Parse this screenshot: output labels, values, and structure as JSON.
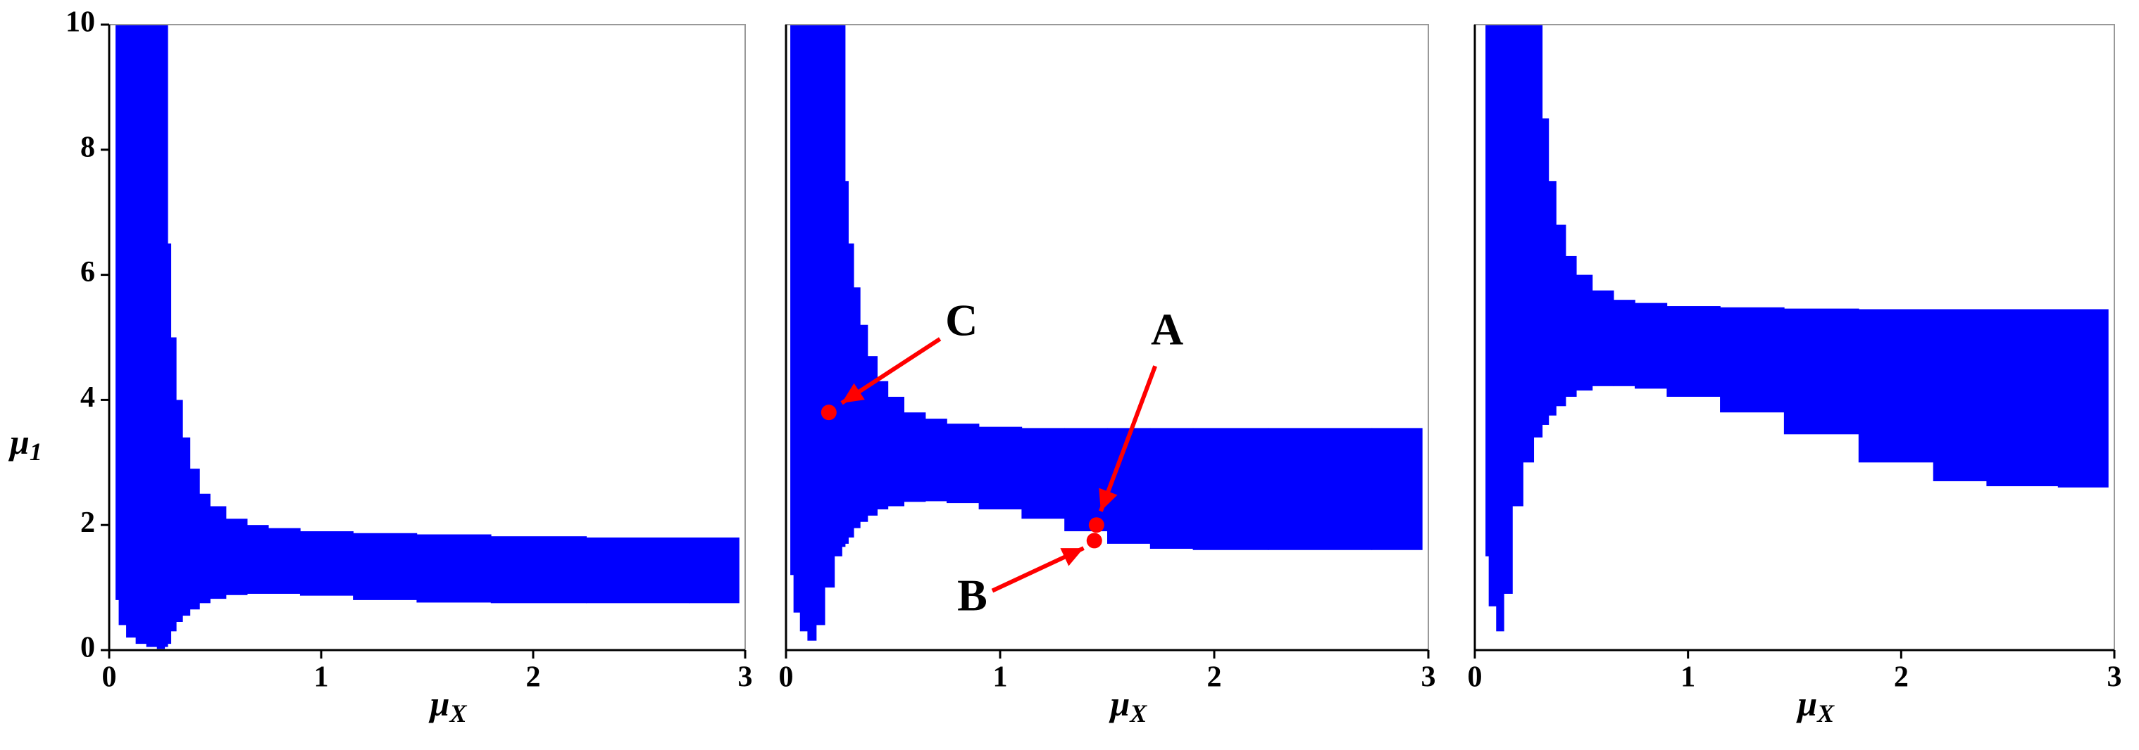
{
  "chart_data": [
    {
      "type": "range",
      "color": "#0000ff",
      "xlim": [
        0,
        3
      ],
      "ylim": [
        0,
        10
      ],
      "xticks": [
        0,
        1,
        2,
        3
      ],
      "yticks": [
        0,
        2,
        4,
        6,
        8,
        10
      ],
      "xlabel": {
        "base": "μ",
        "sub": "X"
      },
      "ylabel": {
        "base": "μ",
        "sub": "1"
      },
      "x": [
        0.03,
        0.06,
        0.1,
        0.15,
        0.2,
        0.25,
        0.27,
        0.28,
        0.3,
        0.33,
        0.36,
        0.4,
        0.45,
        0.5,
        0.6,
        0.7,
        0.8,
        1.0,
        1.3,
        1.6,
        2.0,
        2.5,
        2.97
      ],
      "upper": [
        10,
        10,
        10,
        10,
        10,
        10,
        10,
        6.5,
        5,
        4,
        3.4,
        2.9,
        2.5,
        2.3,
        2.1,
        2.0,
        1.95,
        1.9,
        1.87,
        1.85,
        1.82,
        1.8,
        1.8
      ],
      "lower": [
        0.8,
        0.4,
        0.2,
        0.1,
        0.05,
        0.02,
        0.05,
        0.1,
        0.3,
        0.45,
        0.55,
        0.65,
        0.75,
        0.82,
        0.88,
        0.9,
        0.9,
        0.87,
        0.8,
        0.76,
        0.75,
        0.75,
        0.75
      ]
    },
    {
      "type": "range",
      "color": "#0000ff",
      "xlim": [
        0,
        3
      ],
      "ylim": [
        0,
        10
      ],
      "xticks": [
        0,
        1,
        2,
        3
      ],
      "xlabel": {
        "base": "μ",
        "sub": "X"
      },
      "x": [
        0.02,
        0.05,
        0.08,
        0.12,
        0.16,
        0.2,
        0.25,
        0.27,
        0.28,
        0.3,
        0.33,
        0.36,
        0.4,
        0.45,
        0.5,
        0.6,
        0.7,
        0.8,
        1.0,
        1.2,
        1.4,
        1.6,
        1.8,
        2.0,
        2.5,
        2.97
      ],
      "upper": [
        10,
        10,
        10,
        10,
        10,
        10,
        10,
        10,
        7.5,
        6.5,
        5.8,
        5.2,
        4.7,
        4.3,
        4.05,
        3.8,
        3.7,
        3.62,
        3.57,
        3.55,
        3.55,
        3.55,
        3.55,
        3.55,
        3.55,
        3.55
      ],
      "lower": [
        1.2,
        0.6,
        0.3,
        0.15,
        0.4,
        1.0,
        1.5,
        1.65,
        1.7,
        1.8,
        1.95,
        2.05,
        2.15,
        2.25,
        2.3,
        2.37,
        2.38,
        2.35,
        2.25,
        2.1,
        1.9,
        1.7,
        1.62,
        1.6,
        1.6,
        1.6
      ],
      "points": [
        {
          "label": "A",
          "x": 1.45,
          "y": 2.0,
          "color": "#ff0000"
        },
        {
          "label": "B",
          "x": 1.44,
          "y": 1.75,
          "color": "#ff0000"
        },
        {
          "label": "C",
          "x": 0.2,
          "y": 3.8,
          "color": "#ff0000"
        }
      ]
    },
    {
      "type": "range",
      "color": "#0000ff",
      "xlim": [
        0,
        3
      ],
      "ylim": [
        0,
        10
      ],
      "xticks": [
        0,
        1,
        2,
        3
      ],
      "xlabel": {
        "base": "μ",
        "sub": "X"
      },
      "x": [
        0.05,
        0.08,
        0.12,
        0.15,
        0.2,
        0.25,
        0.3,
        0.33,
        0.36,
        0.4,
        0.45,
        0.5,
        0.6,
        0.7,
        0.8,
        1.0,
        1.3,
        1.6,
        2.0,
        2.3,
        2.5,
        2.97
      ],
      "upper": [
        10,
        10,
        10,
        10,
        10,
        10,
        10,
        8.5,
        7.5,
        6.8,
        6.3,
        6.0,
        5.75,
        5.6,
        5.55,
        5.5,
        5.48,
        5.46,
        5.45,
        5.45,
        5.45,
        5.45
      ],
      "lower": [
        1.5,
        0.7,
        0.3,
        0.9,
        2.3,
        3.0,
        3.4,
        3.6,
        3.75,
        3.9,
        4.05,
        4.15,
        4.22,
        4.22,
        4.18,
        4.05,
        3.8,
        3.45,
        3.0,
        2.7,
        2.62,
        2.6
      ]
    }
  ]
}
